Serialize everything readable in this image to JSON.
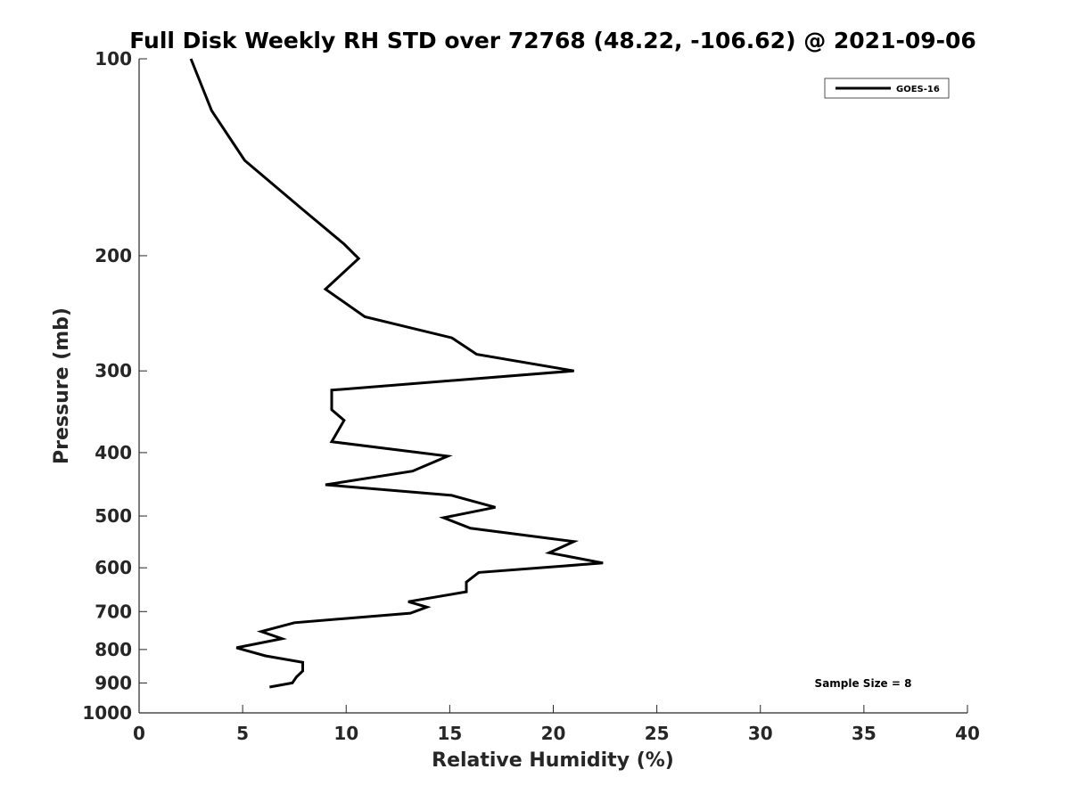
{
  "chart_data": {
    "type": "line",
    "title": "Full Disk Weekly RH STD over 72768 (48.22, -106.62) @ 2021-09-06",
    "xlabel": "Relative Humidity (%)",
    "ylabel": "Pressure (mb)",
    "xlim": [
      0,
      40
    ],
    "ylim": [
      100,
      1000
    ],
    "yscale": "log",
    "y_reversed": true,
    "xticks": [
      0,
      5,
      10,
      15,
      20,
      25,
      30,
      35,
      40
    ],
    "yticks": [
      100,
      200,
      300,
      400,
      500,
      600,
      700,
      800,
      900,
      1000
    ],
    "grid": false,
    "legend_position": "top-right",
    "series": [
      {
        "name": "GOES-16",
        "color": "#000000",
        "x": [
          2.5,
          3.5,
          5.1,
          7.9,
          9.9,
          10.6,
          9.0,
          10.9,
          15.1,
          16.3,
          21.0,
          9.3,
          9.3,
          9.9,
          9.3,
          14.9,
          13.2,
          9.0,
          15.1,
          17.2,
          14.7,
          16.0,
          21.0,
          19.8,
          22.4,
          16.4,
          15.8,
          15.8,
          13.0,
          13.9,
          13.1,
          7.5,
          5.9,
          6.9,
          4.7,
          6.1,
          7.9,
          7.9,
          7.6,
          7.4,
          6.3
        ],
        "y": [
          100,
          120,
          143,
          170,
          192,
          202,
          225,
          248,
          267,
          283,
          300,
          321,
          344,
          357,
          385,
          405,
          427,
          448,
          465,
          485,
          503,
          522,
          547,
          569,
          590,
          610,
          631,
          653,
          676,
          689,
          704,
          728,
          751,
          770,
          795,
          818,
          837,
          863,
          881,
          900,
          913
        ]
      }
    ],
    "annotation": "Sample Size = 8",
    "colors": {
      "line": "#000000",
      "axis": "#262626",
      "background": "#ffffff"
    }
  }
}
